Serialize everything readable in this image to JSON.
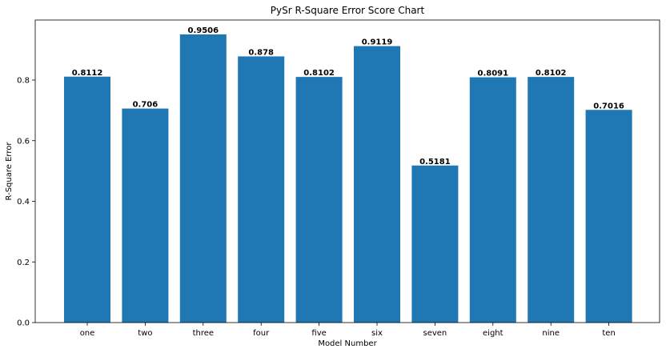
{
  "chart_data": {
    "type": "bar",
    "title": "PySr R-Square Error Score Chart",
    "xlabel": "Model Number",
    "ylabel": "R-Square Error",
    "categories": [
      "one",
      "two",
      "three",
      "four",
      "five",
      "six",
      "seven",
      "eight",
      "nine",
      "ten"
    ],
    "values": [
      0.8112,
      0.706,
      0.9506,
      0.878,
      0.8102,
      0.9119,
      0.5181,
      0.8091,
      0.8102,
      0.7016
    ],
    "value_labels": [
      "0.8112",
      "0.706",
      "0.9506",
      "0.878",
      "0.8102",
      "0.9119",
      "0.5181",
      "0.8091",
      "0.8102",
      "0.7016"
    ],
    "ylim": [
      0,
      0.998
    ],
    "yticks": [
      0.0,
      0.2,
      0.4,
      0.6,
      0.8
    ],
    "ytick_labels": [
      "0.0",
      "0.2",
      "0.4",
      "0.6",
      "0.8"
    ],
    "grid": false,
    "legend": "none",
    "bar_color": "#1f77b4"
  }
}
